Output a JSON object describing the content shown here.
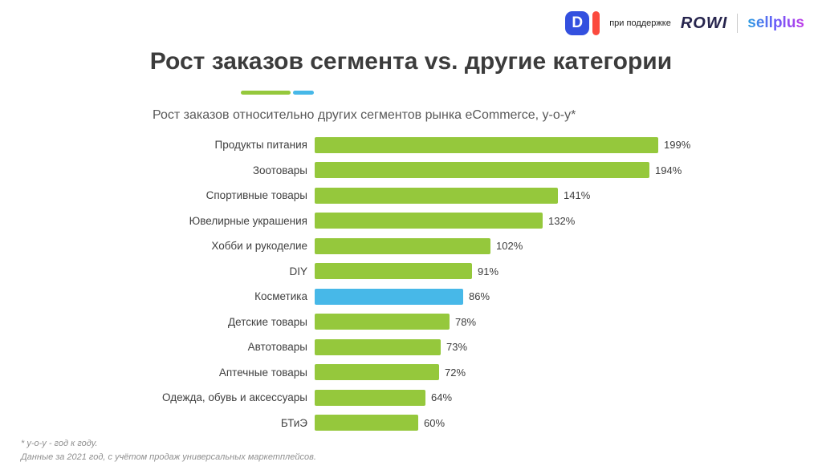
{
  "header": {
    "di_letter": "D",
    "supported_by": "при поддержке",
    "rowi": "ROWI",
    "sellplus": "sellplus"
  },
  "title": "Рост заказов сегмента vs. другие категории",
  "subtitle": "Рост заказов относительно других сегментов рынка eCommerce, y-o-y*",
  "footnotes": {
    "line1": "* y-o-y - год к году.",
    "line2": "Данные за 2021 год, с учётом продаж универсальных маркетплейсов."
  },
  "chart_data": {
    "type": "bar",
    "orientation": "horizontal",
    "title": "Рост заказов относительно других сегментов рынка eCommerce, y-o-y*",
    "categories": [
      "Продукты питания",
      "Зоотовары",
      "Спортивные товары",
      "Ювелирные украшения",
      "Хобби и рукоделие",
      "DIY",
      "Косметика",
      "Детские товары",
      "Автотовары",
      "Аптечные товары",
      "Одежда, обувь и аксессуары",
      "БТиЭ"
    ],
    "values": [
      199,
      194,
      141,
      132,
      102,
      91,
      86,
      78,
      73,
      72,
      64,
      60
    ],
    "value_suffix": "%",
    "xlim": [
      0,
      210
    ],
    "grid": false,
    "legend": false,
    "bar_color": "#95c83c",
    "highlight_color": "#47b8e8",
    "highlight_category": "Косметика",
    "highlight_index": 6
  }
}
